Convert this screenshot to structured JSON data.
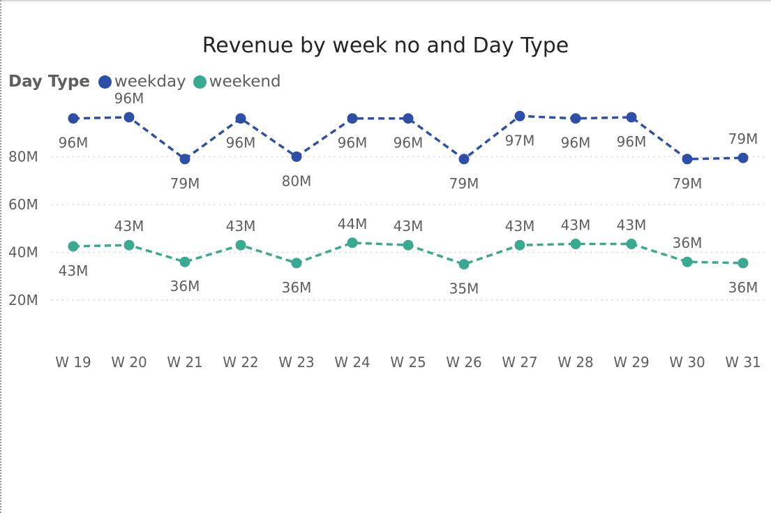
{
  "title": "Revenue by week no and Day Type",
  "legend": {
    "title": "Day Type",
    "items": [
      {
        "label": "weekday",
        "color": "#2E4FA8"
      },
      {
        "label": "weekend",
        "color": "#39A992"
      }
    ]
  },
  "chart_data": {
    "type": "line",
    "title": "Revenue by week no and Day Type",
    "xlabel": "",
    "ylabel": "",
    "categories": [
      "W 19",
      "W 20",
      "W 21",
      "W 22",
      "W 23",
      "W 24",
      "W 25",
      "W 26",
      "W 27",
      "W 28",
      "W 29",
      "W 30",
      "W 31"
    ],
    "y_ticks": [
      20,
      40,
      60,
      80
    ],
    "y_tick_labels": [
      "20M",
      "40M",
      "60M",
      "80M"
    ],
    "ylim": [
      0,
      110
    ],
    "grid": true,
    "line_style": "dashed",
    "legend_position": "top-left",
    "series": [
      {
        "name": "weekday",
        "color": "#2E4FA8",
        "values": [
          96,
          96.5,
          79,
          96,
          80,
          96,
          96,
          79,
          97,
          96,
          96.5,
          79,
          79.5
        ],
        "labels": [
          "96M",
          "96M",
          "79M",
          "96M",
          "80M",
          "96M",
          "96M",
          "79M",
          "97M",
          "96M",
          "96M",
          "79M",
          "79M"
        ],
        "label_side": [
          "below",
          "above",
          "below",
          "below",
          "below",
          "below",
          "below",
          "below",
          "below",
          "below",
          "below",
          "below",
          "above"
        ]
      },
      {
        "name": "weekend",
        "color": "#39A992",
        "values": [
          42.5,
          43,
          36,
          43,
          35.5,
          44,
          43,
          35,
          43,
          43.5,
          43.5,
          36,
          35.5
        ],
        "labels": [
          "43M",
          "43M",
          "36M",
          "43M",
          "36M",
          "44M",
          "43M",
          "35M",
          "43M",
          "43M",
          "43M",
          "36M",
          "36M"
        ],
        "label_side": [
          "below",
          "above",
          "below",
          "above",
          "below",
          "above",
          "above",
          "below",
          "above",
          "above",
          "above",
          "above",
          "below"
        ]
      }
    ]
  }
}
